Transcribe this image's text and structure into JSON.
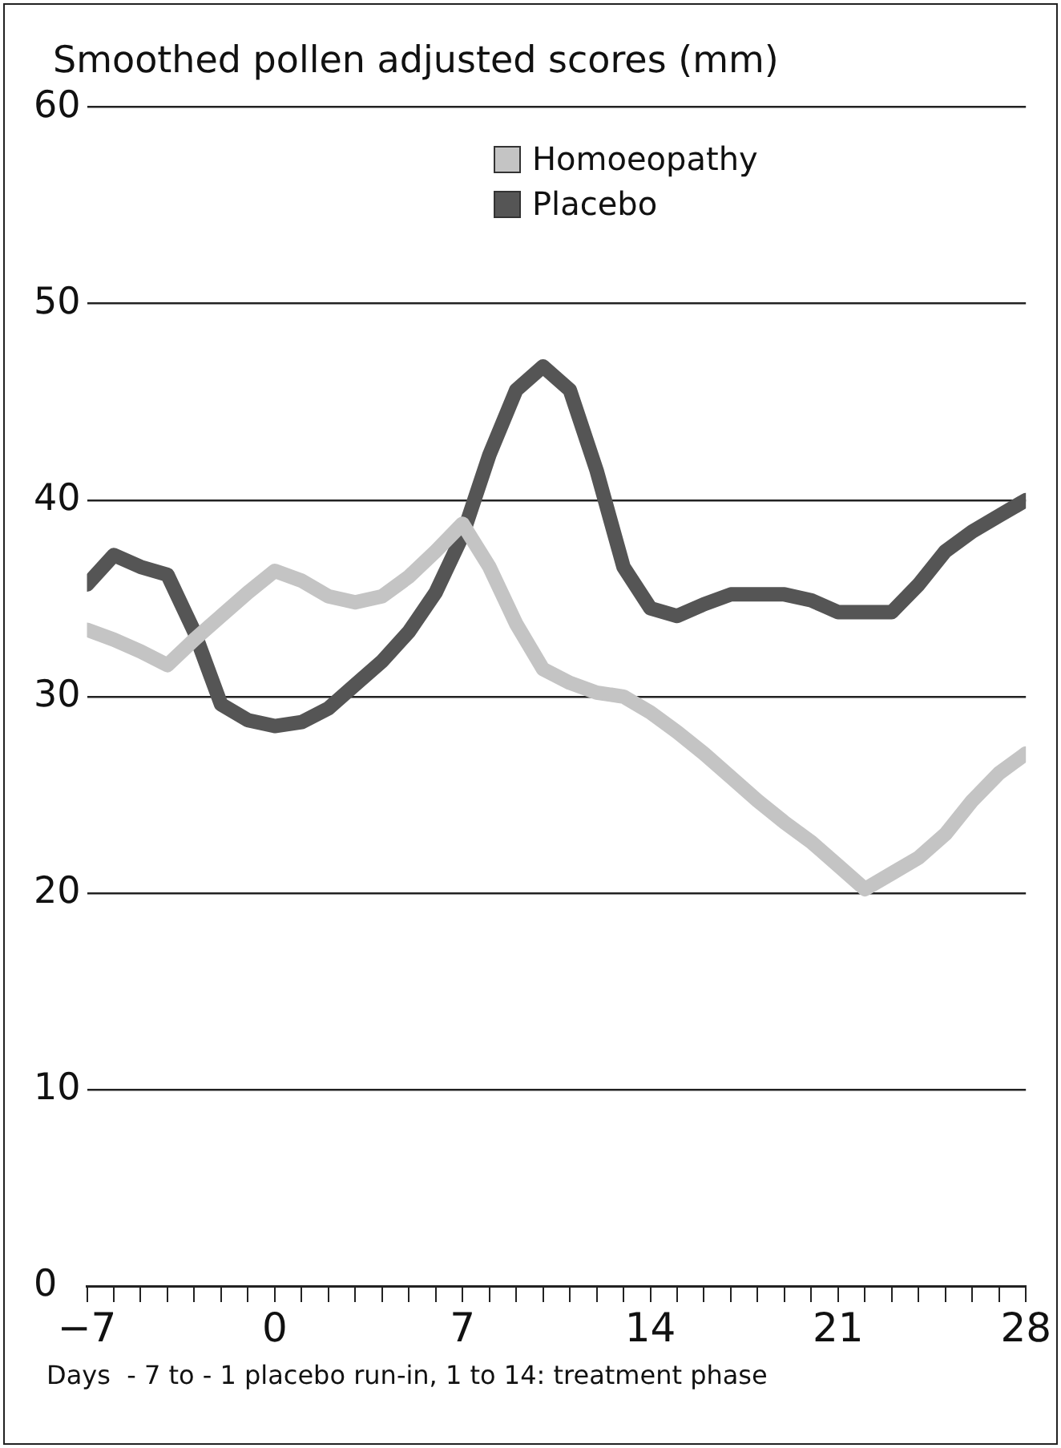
{
  "chart_data": {
    "type": "line",
    "title": "Smoothed pollen adjusted scores (mm)",
    "xlabel": "Days  - 7 to - 1 placebo run-in, 1 to 14: treatment phase",
    "x": [
      -7,
      -6,
      -5,
      -4,
      -3,
      -2,
      -1,
      0,
      1,
      2,
      3,
      4,
      5,
      6,
      7,
      8,
      9,
      10,
      11,
      12,
      13,
      14,
      15,
      16,
      17,
      18,
      19,
      20,
      21,
      22,
      23,
      24,
      25,
      26,
      27,
      28
    ],
    "series": [
      {
        "name": "Homoeopathy",
        "color": "#c4c4c4",
        "values": [
          33.4,
          32.9,
          32.3,
          31.6,
          32.9,
          34.1,
          35.3,
          36.4,
          35.9,
          35.1,
          34.8,
          35.1,
          36.1,
          37.4,
          38.8,
          36.6,
          33.7,
          31.4,
          30.7,
          30.2,
          30,
          29.2,
          28.2,
          27.1,
          25.9,
          24.7,
          23.6,
          22.6,
          21.4,
          20.2,
          21,
          21.8,
          23,
          24.7,
          26.1,
          27.1
        ]
      },
      {
        "name": "Placebo",
        "color": "#555555",
        "values": [
          35.7,
          37.2,
          36.6,
          36.2,
          33.3,
          29.6,
          28.8,
          28.5,
          28.7,
          29.4,
          30.6,
          31.8,
          33.3,
          35.3,
          38.2,
          42.3,
          45.6,
          46.8,
          45.6,
          41.5,
          36.6,
          34.5,
          34.1,
          34.7,
          35.2,
          35.2,
          35.2,
          34.9,
          34.3,
          34.3,
          34.3,
          35.7,
          37.4,
          38.4,
          39.2,
          40
        ]
      }
    ],
    "xlim": [
      -7,
      28
    ],
    "xticks": [
      {
        "value": -7,
        "label": "−7"
      },
      {
        "value": -6,
        "label": null
      },
      {
        "value": -5,
        "label": null
      },
      {
        "value": -4,
        "label": null
      },
      {
        "value": -3,
        "label": null
      },
      {
        "value": -2,
        "label": null
      },
      {
        "value": -1,
        "label": null
      },
      0,
      {
        "value": 1,
        "label": null
      },
      {
        "value": 2,
        "label": null
      },
      {
        "value": 3,
        "label": null
      },
      {
        "value": 4,
        "label": null
      },
      {
        "value": 5,
        "label": null
      },
      {
        "value": 6,
        "label": null
      },
      7,
      {
        "value": 8,
        "label": null
      },
      {
        "value": 9,
        "label": null
      },
      {
        "value": 10,
        "label": null
      },
      {
        "value": 11,
        "label": null
      },
      {
        "value": 12,
        "label": null
      },
      {
        "value": 13,
        "label": null
      },
      14,
      {
        "value": 15,
        "label": null
      },
      {
        "value": 16,
        "label": null
      },
      {
        "value": 17,
        "label": null
      },
      {
        "value": 18,
        "label": null
      },
      {
        "value": 19,
        "label": null
      },
      {
        "value": 20,
        "label": null
      },
      21,
      {
        "value": 22,
        "label": null
      },
      {
        "value": 23,
        "label": null
      },
      {
        "value": 24,
        "label": null
      },
      {
        "value": 25,
        "label": null
      },
      {
        "value": 26,
        "label": null
      },
      {
        "value": 27,
        "label": null
      },
      28
    ],
    "ylim": [
      0,
      60
    ],
    "yticks": [
      0,
      10,
      20,
      30,
      40,
      50,
      60
    ],
    "grid": "y",
    "legend": "top right",
    "marker": "none",
    "line_style": "solid"
  }
}
